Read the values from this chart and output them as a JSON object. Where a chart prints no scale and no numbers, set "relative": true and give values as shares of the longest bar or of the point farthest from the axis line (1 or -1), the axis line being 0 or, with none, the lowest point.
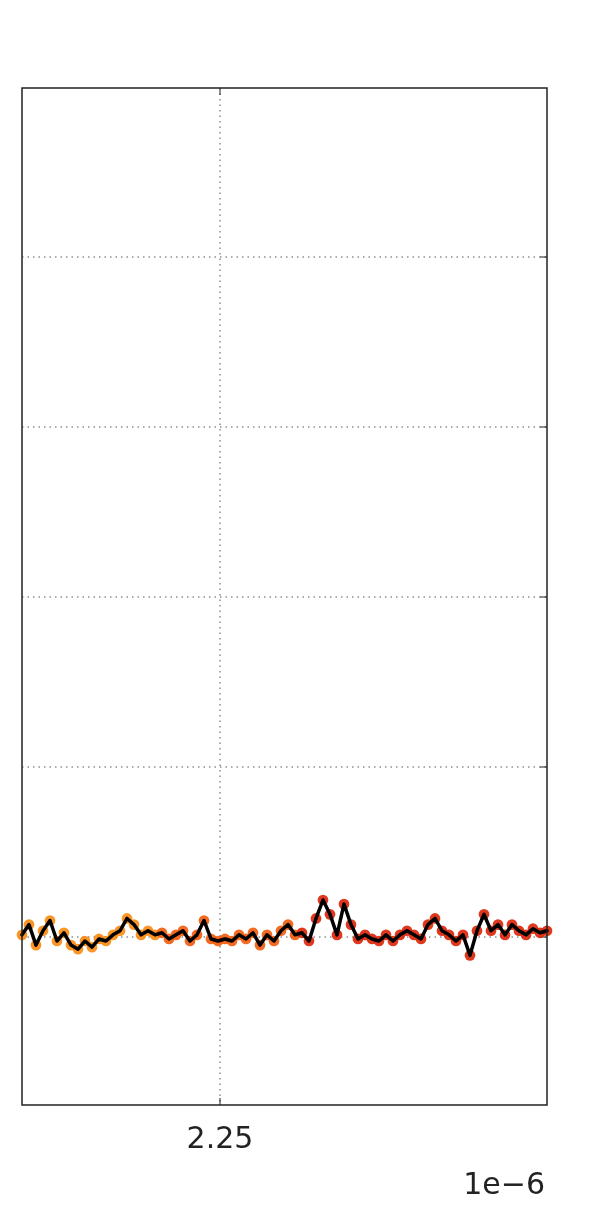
{
  "chart_data": {
    "type": "line",
    "relative": true,
    "grid": true,
    "marker": "circle",
    "line_style": "solid",
    "categories": [
      null,
      null,
      null,
      null,
      null,
      null,
      null,
      null,
      null,
      null,
      null,
      null,
      null,
      null,
      null,
      null,
      null,
      null,
      null,
      null,
      null,
      null,
      null,
      null,
      null,
      null,
      null,
      null,
      null,
      null,
      null,
      null,
      null,
      null,
      null,
      null,
      null,
      null,
      null,
      null,
      null,
      null,
      null,
      null,
      null,
      null,
      null,
      null,
      null,
      null,
      null,
      null,
      null,
      null,
      null,
      null,
      null,
      null,
      null,
      null,
      null,
      null,
      null,
      null,
      null,
      null,
      null,
      null,
      null,
      null,
      null,
      null,
      null,
      null,
      null,
      null
    ],
    "annotations": [
      "2.25",
      "1e−6"
    ],
    "series": [
      {
        "color": "#000000",
        "colors": [
          "#fa8a10",
          "#fa8a10",
          "#fa8a10",
          "#fa8a10",
          "#fa8a10",
          "#fa8a10",
          "#fa8a10",
          "#fa8a10",
          "#fa8a10",
          "#fa8a10",
          "#fa8a10",
          "#fa8a10",
          "#fa8a10",
          "#fa8a10",
          "#fa8a10",
          "#fa8a10",
          "#fa8a10",
          "#fa8a10",
          "#fa8a10",
          "#fa8a10",
          "#f25a0a",
          "#f25a0a",
          "#f25a0a",
          "#f25a0a",
          "#f25a0a",
          "#f25a0a",
          "#f25a0a",
          "#f25a0a",
          "#f25a0a",
          "#f25a0a",
          "#f25a0a",
          "#f25a0a",
          "#f25a0a",
          "#f25a0a",
          "#f25a0a",
          "#f25a0a",
          "#f25a0a",
          "#f25a0a",
          "#f25a0a",
          "#f25a0a",
          "#dc2205",
          "#dc2205",
          "#dc2205",
          "#dc2205",
          "#dc2205",
          "#dc2205",
          "#dc2205",
          "#dc2205",
          "#dc2205",
          "#dc2205",
          "#dc2205",
          "#dc2205",
          "#dc2205",
          "#dc2205",
          "#dc2205",
          "#dc2205",
          "#dc2205",
          "#dc2205",
          "#dc2205",
          "#dc2205",
          "#dc2205",
          "#dc2205",
          "#dc2205",
          "#dc2205",
          "#dc2205",
          "#dc2205",
          "#dc2205",
          "#dc2205",
          "#dc2205",
          "#dc2205",
          "#dc2205",
          "#dc2205",
          "#dc2205",
          "#dc2205",
          "#dc2205",
          "#dc2205"
        ],
        "values": [
          0.83,
          0.88,
          0.78,
          0.85,
          0.9,
          0.8,
          0.84,
          0.78,
          0.76,
          0.8,
          0.77,
          0.81,
          0.8,
          0.83,
          0.85,
          0.91,
          0.88,
          0.83,
          0.85,
          0.83,
          0.84,
          0.81,
          0.83,
          0.85,
          0.8,
          0.83,
          0.9,
          0.81,
          0.8,
          0.81,
          0.8,
          0.83,
          0.81,
          0.84,
          0.78,
          0.83,
          0.8,
          0.85,
          0.88,
          0.83,
          0.84,
          0.8,
          0.91,
          1,
          0.93,
          0.83,
          0.98,
          0.88,
          0.81,
          0.83,
          0.81,
          0.8,
          0.83,
          0.8,
          0.83,
          0.85,
          0.83,
          0.81,
          0.88,
          0.91,
          0.85,
          0.83,
          0.8,
          0.83,
          0.73,
          0.85,
          0.93,
          0.85,
          0.88,
          0.83,
          0.88,
          0.85,
          0.83,
          0.86,
          0.84,
          0.85
        ]
      }
    ]
  }
}
